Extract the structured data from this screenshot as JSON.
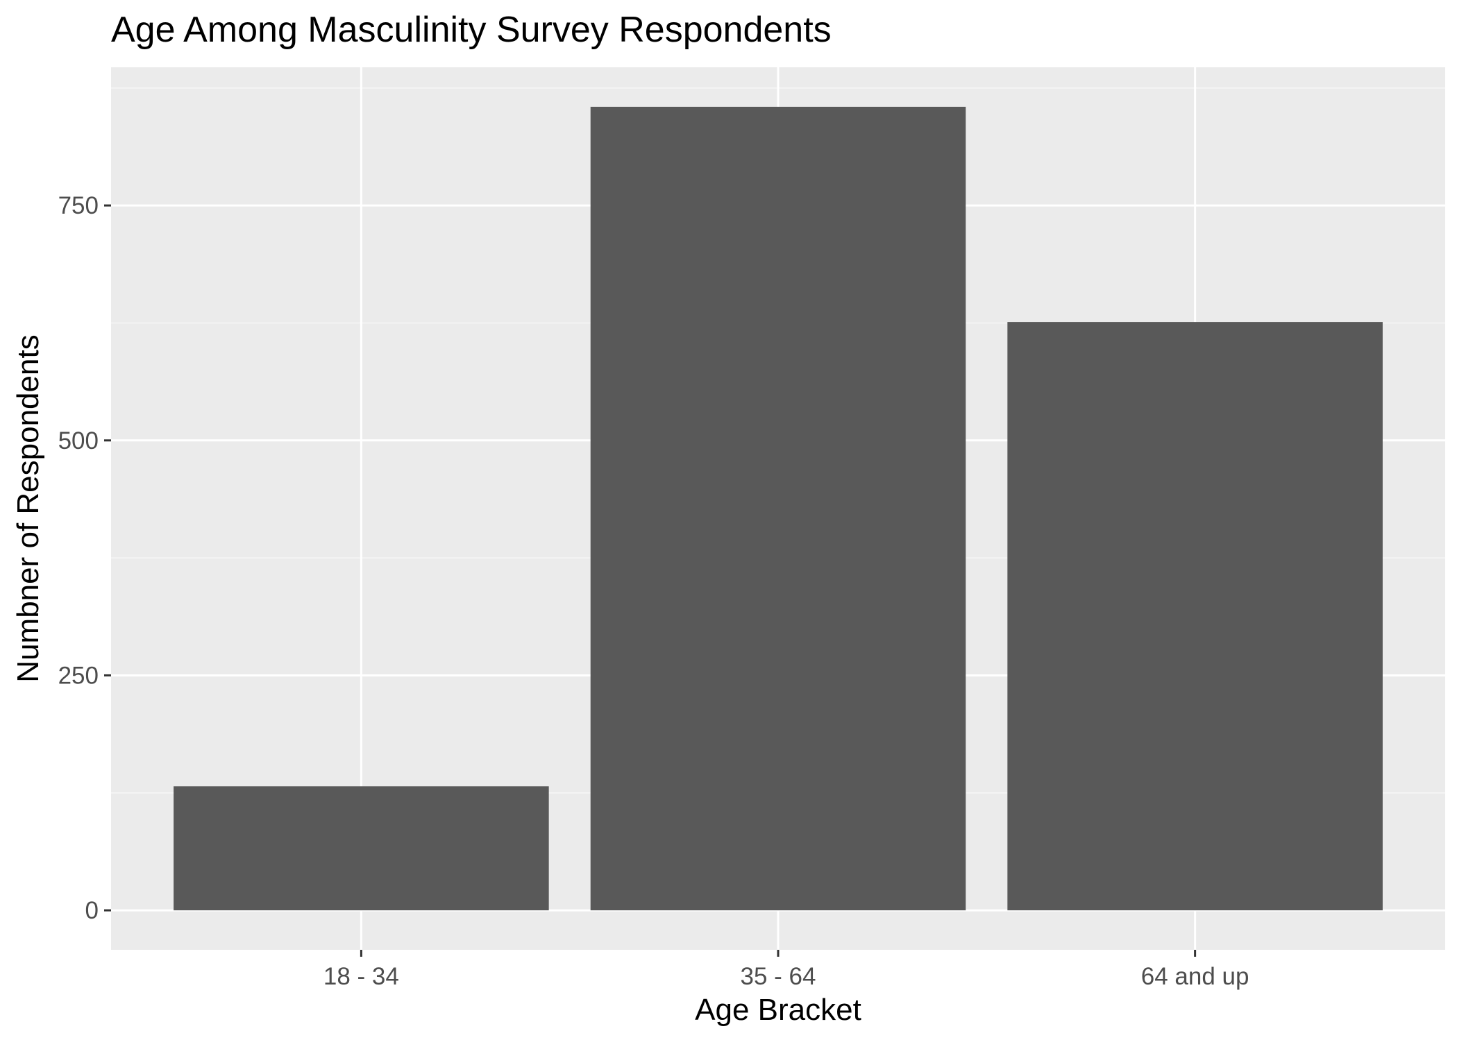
{
  "chart_data": {
    "type": "bar",
    "title": "Age Among Masculinity Survey Respondents",
    "xlabel": "Age Bracket",
    "ylabel": "Numbner of Respondents",
    "categories": [
      "18 - 34",
      "35 - 64",
      "64 and up"
    ],
    "values": [
      132,
      855,
      626
    ],
    "ylim": [
      -42,
      897
    ],
    "yticks": [
      0,
      250,
      500,
      750
    ],
    "ytick_labels": [
      "0",
      "250",
      "500",
      "750"
    ],
    "grid": true,
    "legend": "none",
    "colors": {
      "panel_background": "#ebebeb",
      "grid_major": "#ffffff",
      "grid_minor": "#f5f5f5",
      "bar_fill": "#595959",
      "tick_mark": "#333333"
    }
  }
}
